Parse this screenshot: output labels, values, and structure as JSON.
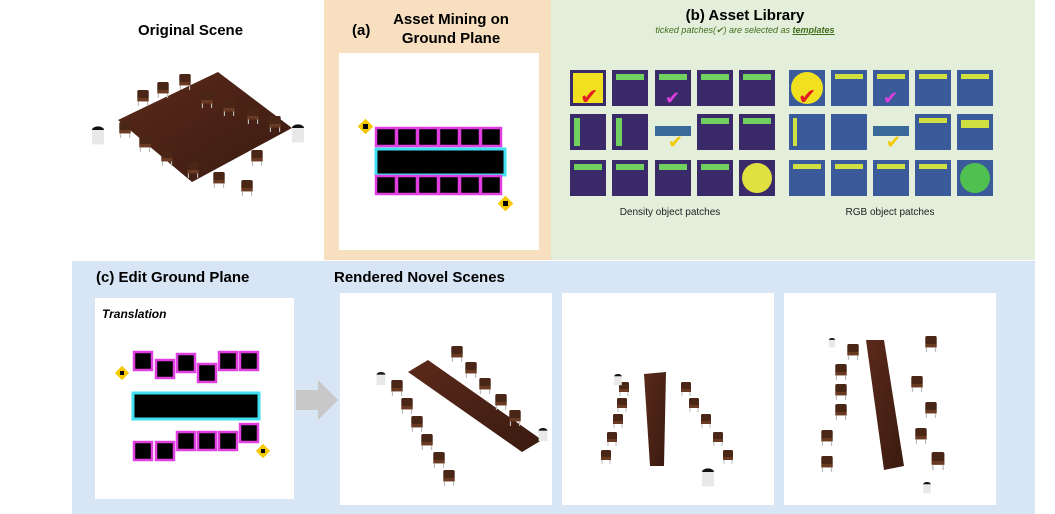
{
  "original": {
    "title": "Original Scene"
  },
  "panel_a": {
    "label": "(a)",
    "title_line1": "Asset Mining on",
    "title_line2": "Ground Plane"
  },
  "panel_b": {
    "title": "(b)  Asset Library",
    "subtitle_pre": "ticked patches(✔) are selected as ",
    "subtitle_em": "templates",
    "caption_density": "Density object patches",
    "caption_rgb": "RGB object patches"
  },
  "panel_c": {
    "title": "(c)  Edit Ground Plane",
    "translation": "Translation"
  },
  "rendered": {
    "title": "Rendered Novel Scenes"
  },
  "colors": {
    "magenta": "#e040e0",
    "cyan": "#40e0f0",
    "yellow": "#f6c800",
    "orange_bg": "#f7dfbf",
    "green_bg": "#e3eedb",
    "blue_bg": "#d7e5f5"
  }
}
